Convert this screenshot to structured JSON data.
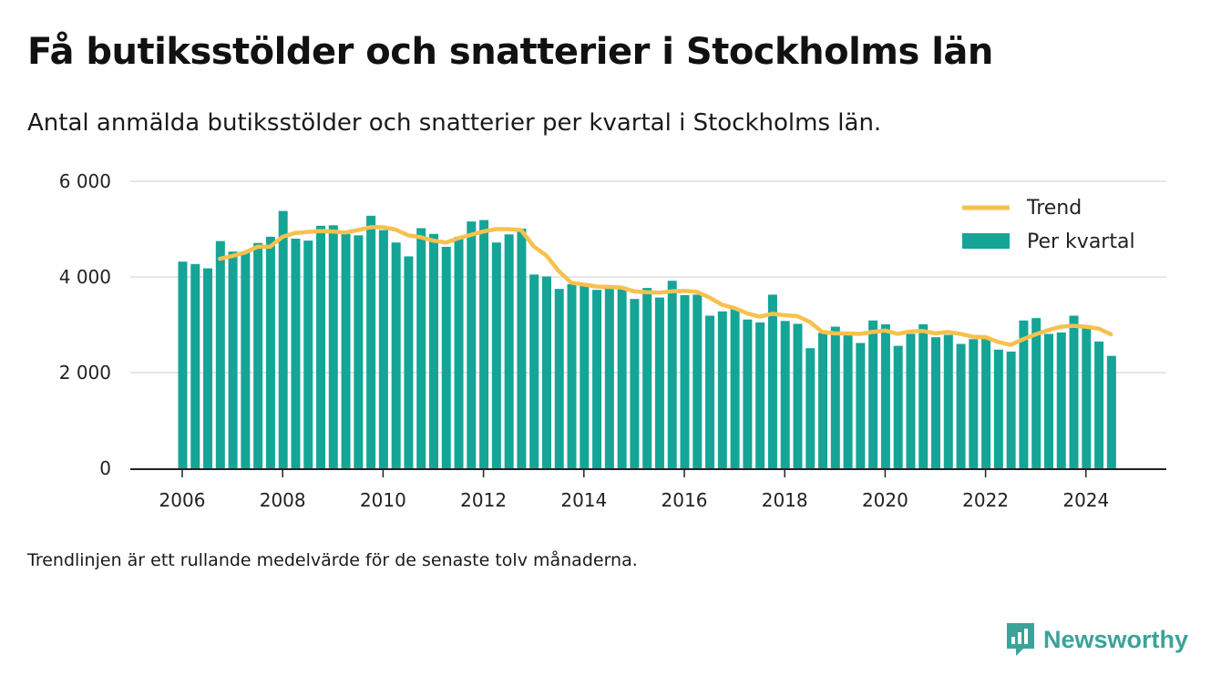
{
  "title": "Få butiksstölder och snatterier i Stockholms län",
  "subtitle": "Antal anmälda butiksstölder och snatterier per kvartal i Stockholms län.",
  "note": "Trendlinjen är ett rullande medelvärde för de senaste tolv månaderna.",
  "logo_text": "Newsworthy",
  "colors": {
    "bar": "#14a597",
    "trend": "#f7c14e",
    "grid": "#dddddd",
    "axis": "#222222",
    "brand": "#3aa39a"
  },
  "chart_data": {
    "type": "bar",
    "title": "Få butiksstölder och snatterier i Stockholms län",
    "subtitle": "Antal anmälda butiksstölder och snatterier per kvartal i Stockholms län.",
    "xlabel": "",
    "ylabel": "",
    "ylim": [
      0,
      6000
    ],
    "yticks": [
      0,
      2000,
      4000,
      6000
    ],
    "ytick_labels": [
      "0",
      "2 000",
      "4 000",
      "6 000"
    ],
    "xlim": [
      2005,
      2025.5
    ],
    "xticks": [
      2006,
      2008,
      2010,
      2012,
      2014,
      2016,
      2018,
      2020,
      2022,
      2024
    ],
    "xtick_labels": [
      "2006",
      "2008",
      "2010",
      "2012",
      "2014",
      "2016",
      "2018",
      "2020",
      "2022",
      "2024"
    ],
    "grid": true,
    "legend_position": "top-right",
    "x": [
      "2006 Q1",
      "2006 Q2",
      "2006 Q3",
      "2006 Q4",
      "2007 Q1",
      "2007 Q2",
      "2007 Q3",
      "2007 Q4",
      "2008 Q1",
      "2008 Q2",
      "2008 Q3",
      "2008 Q4",
      "2009 Q1",
      "2009 Q2",
      "2009 Q3",
      "2009 Q4",
      "2010 Q1",
      "2010 Q2",
      "2010 Q3",
      "2010 Q4",
      "2011 Q1",
      "2011 Q2",
      "2011 Q3",
      "2011 Q4",
      "2012 Q1",
      "2012 Q2",
      "2012 Q3",
      "2012 Q4",
      "2013 Q1",
      "2013 Q2",
      "2013 Q3",
      "2013 Q4",
      "2014 Q1",
      "2014 Q2",
      "2014 Q3",
      "2014 Q4",
      "2015 Q1",
      "2015 Q2",
      "2015 Q3",
      "2015 Q4",
      "2016 Q1",
      "2016 Q2",
      "2016 Q3",
      "2016 Q4",
      "2017 Q1",
      "2017 Q2",
      "2017 Q3",
      "2017 Q4",
      "2018 Q1",
      "2018 Q2",
      "2018 Q3",
      "2018 Q4",
      "2019 Q1",
      "2019 Q2",
      "2019 Q3",
      "2019 Q4",
      "2020 Q1",
      "2020 Q2",
      "2020 Q3",
      "2020 Q4",
      "2021 Q1",
      "2021 Q2",
      "2021 Q3",
      "2021 Q4",
      "2022 Q1",
      "2022 Q2",
      "2022 Q3",
      "2022 Q4",
      "2023 Q1",
      "2023 Q2",
      "2023 Q3",
      "2023 Q4",
      "2024 Q1",
      "2024 Q2",
      "2024 Q3"
    ],
    "series": [
      {
        "name": "Per kvartal",
        "type": "bar",
        "values": [
          4320,
          4270,
          4180,
          4750,
          4530,
          4520,
          4710,
          4840,
          5380,
          4800,
          4760,
          5070,
          5080,
          4900,
          4870,
          5280,
          4980,
          4720,
          4430,
          5020,
          4900,
          4630,
          4840,
          5160,
          5190,
          4720,
          4890,
          5010,
          4050,
          4010,
          3750,
          3850,
          3860,
          3730,
          3760,
          3800,
          3540,
          3770,
          3570,
          3920,
          3620,
          3630,
          3190,
          3280,
          3340,
          3110,
          3050,
          3630,
          3080,
          3020,
          2510,
          2830,
          2960,
          2780,
          2620,
          3090,
          3010,
          2560,
          2810,
          3010,
          2740,
          2790,
          2600,
          2700,
          2720,
          2480,
          2440,
          3090,
          3140,
          2810,
          2840,
          3190,
          2930,
          2650,
          2350
        ]
      },
      {
        "name": "Trend",
        "type": "line",
        "values": [
          null,
          null,
          null,
          4380,
          4440,
          4510,
          4630,
          4630,
          4840,
          4920,
          4940,
          4960,
          4950,
          4930,
          4980,
          5040,
          5040,
          4990,
          4870,
          4830,
          4760,
          4720,
          4810,
          4880,
          4950,
          5000,
          5000,
          4980,
          4640,
          4450,
          4120,
          3880,
          3840,
          3800,
          3790,
          3780,
          3700,
          3680,
          3670,
          3700,
          3710,
          3690,
          3570,
          3420,
          3350,
          3240,
          3170,
          3230,
          3200,
          3180,
          3060,
          2850,
          2820,
          2820,
          2810,
          2850,
          2880,
          2810,
          2860,
          2870,
          2820,
          2850,
          2810,
          2750,
          2740,
          2640,
          2580,
          2700,
          2800,
          2890,
          2960,
          2980,
          2960,
          2920,
          2800
        ]
      }
    ]
  }
}
